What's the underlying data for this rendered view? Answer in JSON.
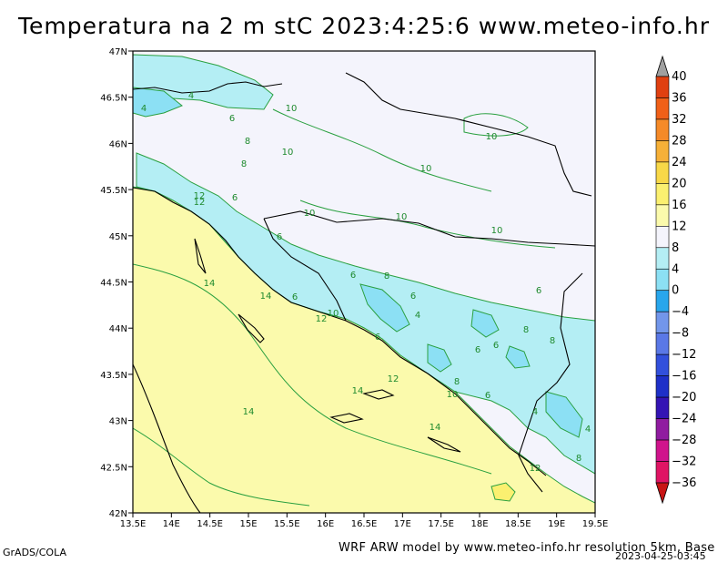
{
  "title": "Temperatura na 2 m stC 2023:4:25:6 www.meteo-info.hr",
  "footer": {
    "left": "GrADS/COLA",
    "right": "WRF ARW model by www.meteo-info.hr resolution 5km, Base",
    "date": "2023-04-25-03:45"
  },
  "map": {
    "lon_labels": [
      "13.5E",
      "14E",
      "14.5E",
      "15E",
      "15.5E",
      "16E",
      "16.5E",
      "17E",
      "17.5E",
      "18E",
      "18.5E",
      "19E",
      "19.5E"
    ],
    "lat_labels": [
      "42N",
      "42.5N",
      "43N",
      "43.5N",
      "44N",
      "44.5N",
      "45N",
      "45.5N",
      "46N",
      "46.5N",
      "47N"
    ],
    "contour_labels": [
      {
        "t": "4"
      },
      {
        "t": "6"
      },
      {
        "t": "10"
      },
      {
        "t": "8"
      },
      {
        "t": "10"
      },
      {
        "t": "8"
      },
      {
        "t": "6"
      },
      {
        "t": "12"
      },
      {
        "t": "12"
      },
      {
        "t": "10"
      },
      {
        "t": "10"
      },
      {
        "t": "10"
      },
      {
        "t": "10"
      },
      {
        "t": "10"
      },
      {
        "t": "6"
      },
      {
        "t": "14"
      },
      {
        "t": "14"
      },
      {
        "t": "6"
      },
      {
        "t": "6"
      },
      {
        "t": "8"
      },
      {
        "t": "6"
      },
      {
        "t": "4"
      },
      {
        "t": "12"
      },
      {
        "t": "10"
      },
      {
        "t": "6"
      },
      {
        "t": "8"
      },
      {
        "t": "6"
      },
      {
        "t": "6"
      },
      {
        "t": "6"
      },
      {
        "t": "8"
      },
      {
        "t": "12"
      },
      {
        "t": "14"
      },
      {
        "t": "8"
      },
      {
        "t": "10"
      },
      {
        "t": "6"
      },
      {
        "t": "4"
      },
      {
        "t": "14"
      },
      {
        "t": "14"
      },
      {
        "t": "4"
      },
      {
        "t": "8"
      },
      {
        "t": "12"
      },
      {
        "t": "4"
      }
    ]
  },
  "colorbar": {
    "labels": [
      "40",
      "36",
      "32",
      "28",
      "24",
      "20",
      "16",
      "12",
      "8",
      "4",
      "0",
      "−4",
      "−8",
      "−12",
      "−16",
      "−20",
      "−24",
      "−28",
      "−32",
      "−36"
    ],
    "colors": [
      "#a0a0a0",
      "#e04010",
      "#f06018",
      "#f58a28",
      "#f6b038",
      "#f8d848",
      "#fbf070",
      "#fbfaac",
      "#f4f4fc",
      "#b4eef4",
      "#8ce0f4",
      "#28a6ec",
      "#7296ea",
      "#5a78e6",
      "#3250dc",
      "#1e30c8",
      "#3414b4",
      "#901ca0",
      "#d0148c",
      "#e01464",
      "#c81414"
    ]
  }
}
